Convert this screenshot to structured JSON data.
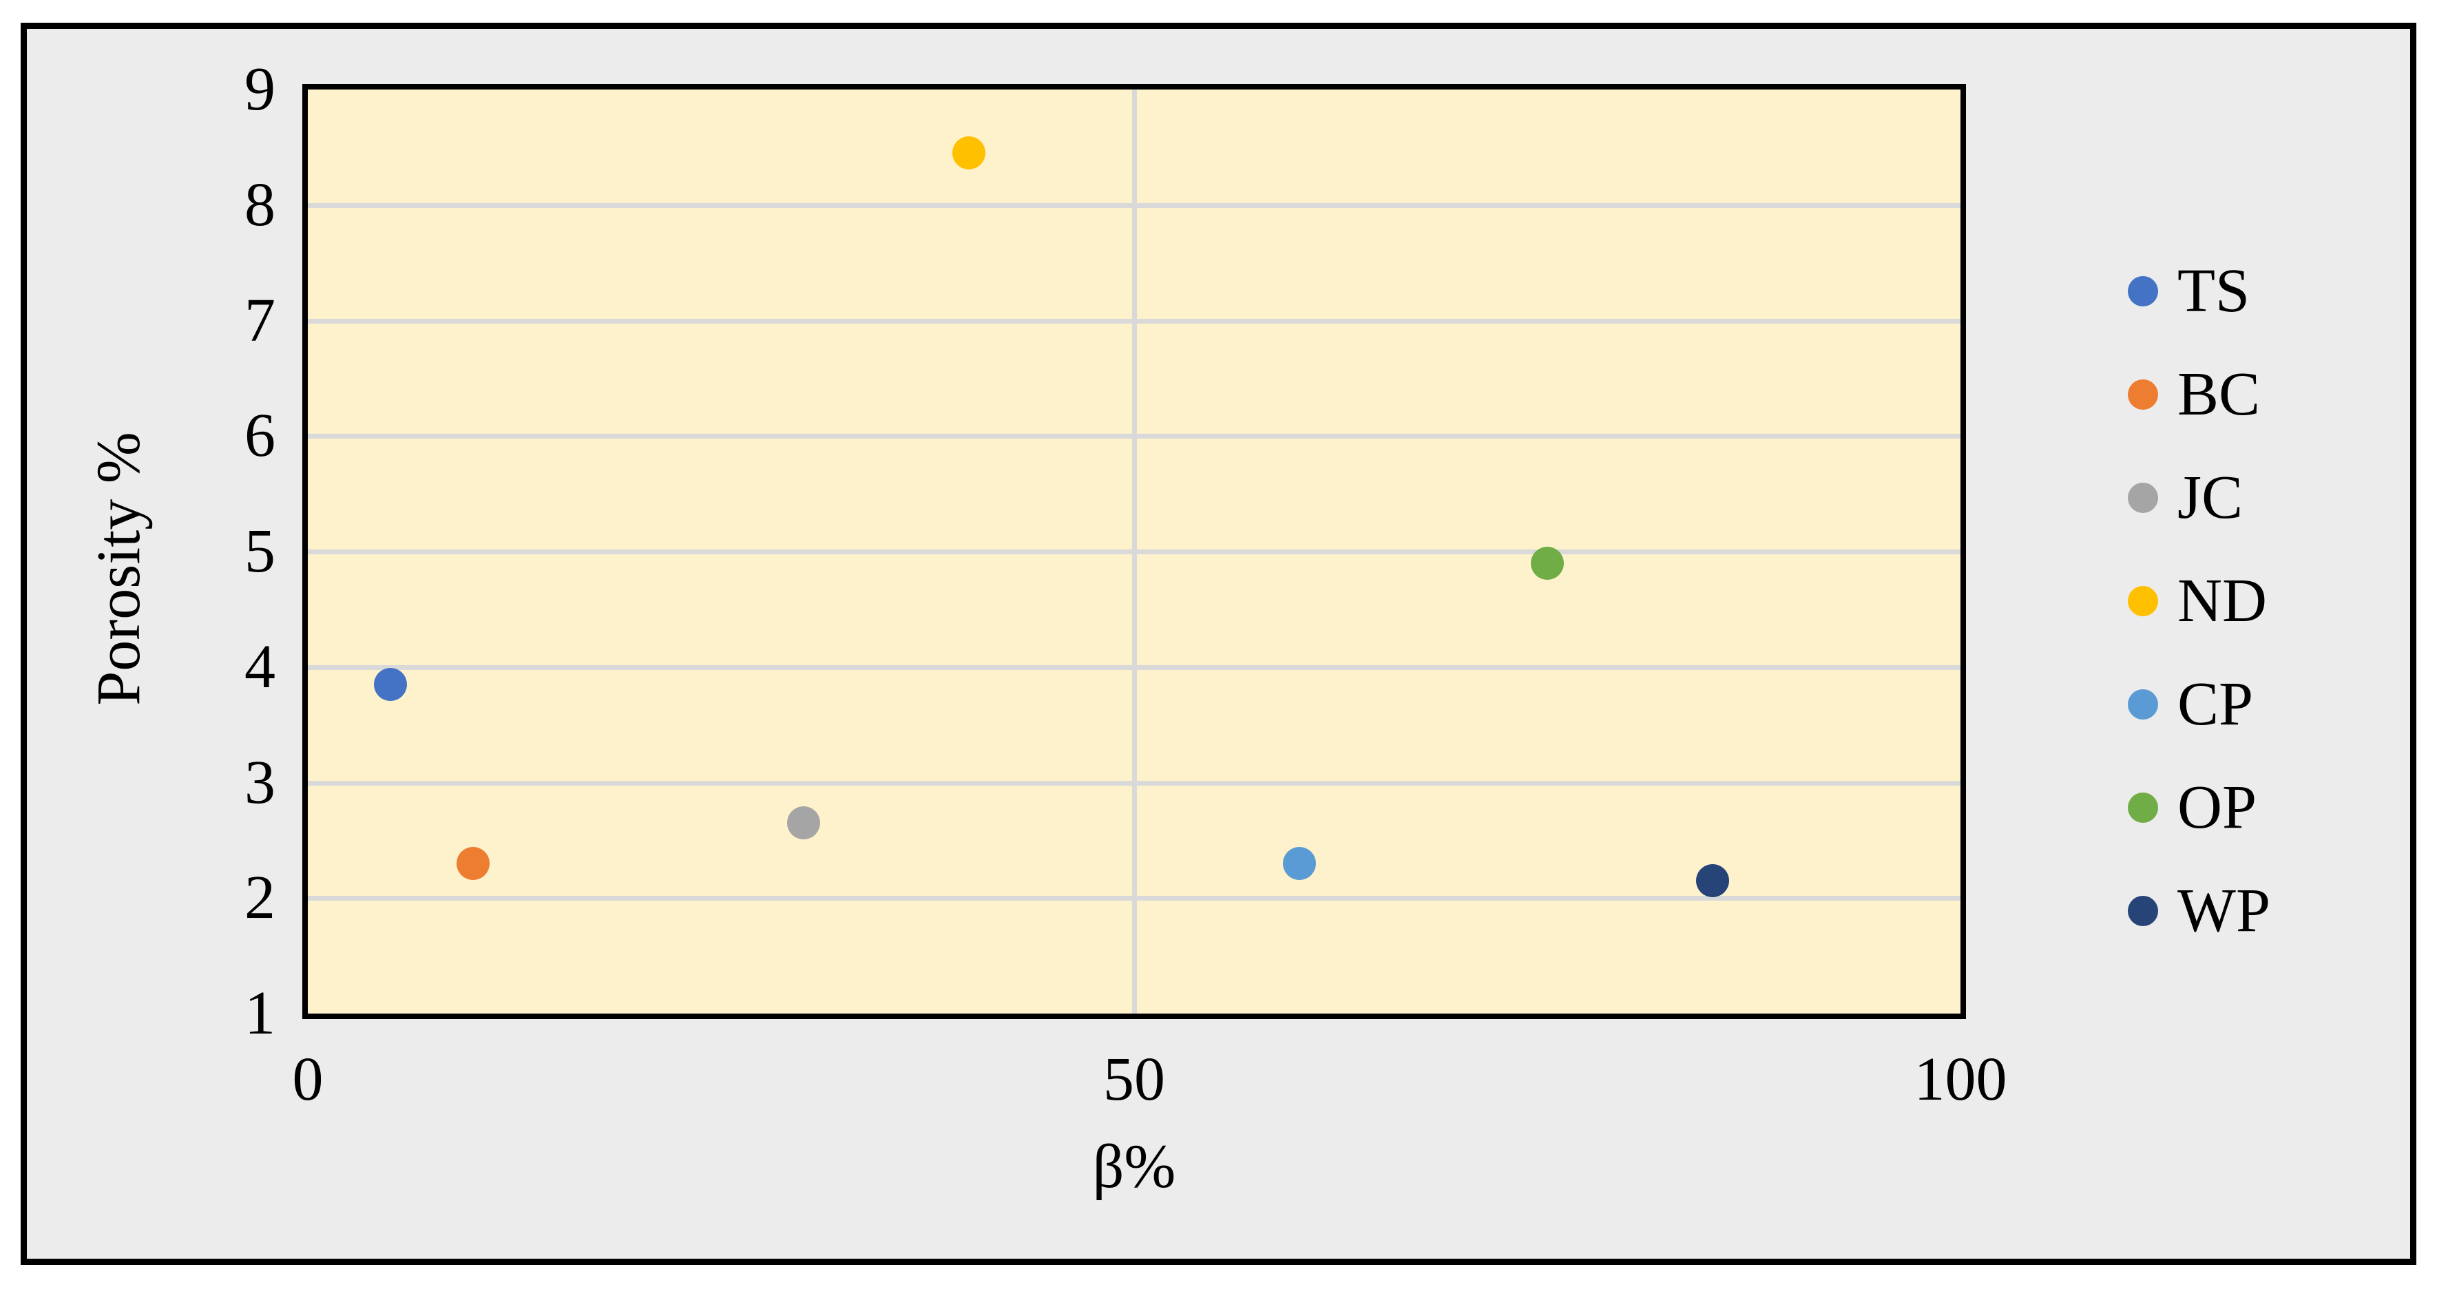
{
  "chart_data": {
    "type": "scatter",
    "title": "",
    "xlabel": "β%",
    "ylabel": "Porosity %",
    "xlim": [
      0,
      100
    ],
    "ylim": [
      1,
      9
    ],
    "xticks": [
      0,
      50,
      100
    ],
    "yticks": [
      1,
      2,
      3,
      4,
      5,
      6,
      7,
      8,
      9
    ],
    "x_gridlines": [
      50
    ],
    "y_gridlines": [
      2,
      3,
      4,
      5,
      6,
      7,
      8
    ],
    "grid_on": true,
    "grid_color": "#D9D9D9",
    "plot_bg_color": "#FDF2CC",
    "outer_bg_color": "#ECECEC",
    "border_color": "#000000",
    "legend_position": "right",
    "series": [
      {
        "name": "TS",
        "color": "#4472C4",
        "points": [
          {
            "x": 5,
            "y": 3.85
          }
        ]
      },
      {
        "name": "BC",
        "color": "#ED7D31",
        "points": [
          {
            "x": 10,
            "y": 2.3
          }
        ]
      },
      {
        "name": "JC",
        "color": "#A5A5A5",
        "points": [
          {
            "x": 30,
            "y": 2.65
          }
        ]
      },
      {
        "name": "ND",
        "color": "#FFC000",
        "points": [
          {
            "x": 40,
            "y": 8.45
          }
        ]
      },
      {
        "name": "CP",
        "color": "#5B9BD5",
        "points": [
          {
            "x": 60,
            "y": 2.3
          }
        ]
      },
      {
        "name": "OP",
        "color": "#70AD47",
        "points": [
          {
            "x": 75,
            "y": 4.9
          }
        ]
      },
      {
        "name": "WP",
        "color": "#264478",
        "points": [
          {
            "x": 85,
            "y": 2.15
          }
        ]
      }
    ]
  }
}
